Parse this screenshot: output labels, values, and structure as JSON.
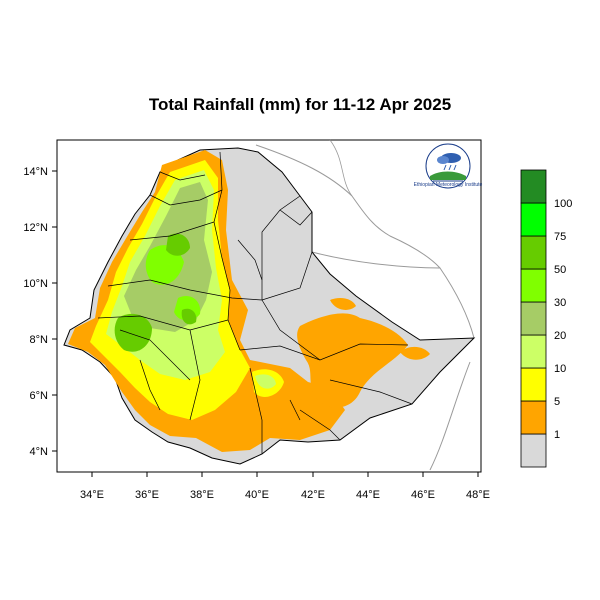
{
  "title": "Total Rainfall (mm) for 11-12 Apr 2025",
  "map": {
    "x_ticks": [
      "34°E",
      "36°E",
      "38°E",
      "40°E",
      "42°E",
      "44°E",
      "46°E",
      "48°E"
    ],
    "y_ticks": [
      "14°N",
      "12°N",
      "10°N",
      "8°N",
      "6°N",
      "4°N"
    ]
  },
  "legend": {
    "unit": "mm",
    "levels": [
      {
        "label": "",
        "color": "#d9d9d9"
      },
      {
        "label": "1",
        "color": "#ffa500"
      },
      {
        "label": "5",
        "color": "#ffff00"
      },
      {
        "label": "10",
        "color": "#ccff66"
      },
      {
        "label": "20",
        "color": "#a6cc66"
      },
      {
        "label": "30",
        "color": "#80ff00"
      },
      {
        "label": "50",
        "color": "#66cc00"
      },
      {
        "label": "75",
        "color": "#00ff00"
      },
      {
        "label": "100",
        "color": "#238b23"
      }
    ]
  },
  "logo": {
    "name": "Ethiopian Meteorology Institute",
    "icon": "meteorology-logo-icon"
  },
  "colors": {
    "dry": "#d9d9d9",
    "light_rain": "#ffa500",
    "moderate_rain": "#ffff00",
    "wet": "#66cc00",
    "border": "#000000"
  }
}
